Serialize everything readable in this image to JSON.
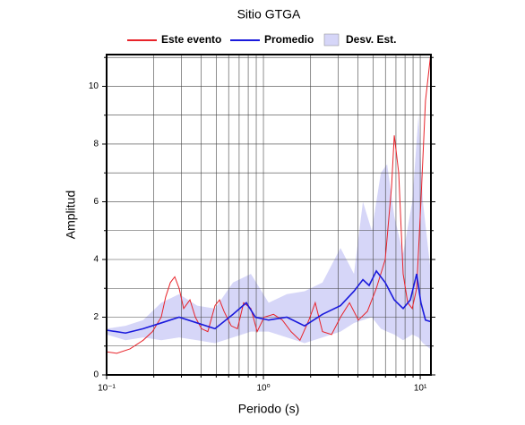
{
  "chart_data": {
    "type": "line",
    "title": "Sitio GTGA",
    "xlabel": "Periodo (s)",
    "ylabel": "Amplitud",
    "xscale": "log",
    "xlim": [
      0.1,
      11.7
    ],
    "ylim": [
      0,
      11.1
    ],
    "xticks": [
      {
        "value": 0.1,
        "label": "10⁻¹"
      },
      {
        "value": 1,
        "label": "10⁰"
      },
      {
        "value": 10,
        "label": "10¹"
      }
    ],
    "minor_xticks": [
      0.2,
      0.3,
      0.4,
      0.5,
      0.6,
      0.7,
      0.8,
      0.9,
      2,
      3,
      4,
      5,
      6,
      7,
      8,
      9
    ],
    "yticks": [
      0,
      2,
      4,
      6,
      8,
      10
    ],
    "minor_yticks": [
      1,
      3,
      5,
      7,
      9,
      11
    ],
    "grid": true,
    "legend": "top",
    "series": [
      {
        "name": "Este evento",
        "color": "#e8232a",
        "x": [
          0.1,
          0.116,
          0.141,
          0.171,
          0.196,
          0.223,
          0.238,
          0.255,
          0.272,
          0.29,
          0.31,
          0.34,
          0.368,
          0.403,
          0.442,
          0.491,
          0.525,
          0.561,
          0.623,
          0.683,
          0.748,
          0.832,
          0.912,
          1.01,
          1.16,
          1.32,
          1.5,
          1.71,
          1.95,
          2.14,
          2.38,
          2.72,
          3.1,
          3.54,
          4.03,
          4.6,
          5.25,
          5.98,
          6.56,
          6.83,
          7.29,
          7.78,
          8.32,
          8.89,
          9.49,
          10.1,
          10.8,
          11.6
        ],
        "values": [
          0.8,
          0.75,
          0.9,
          1.2,
          1.5,
          2.0,
          2.7,
          3.2,
          3.4,
          3.0,
          2.3,
          2.6,
          2.0,
          1.6,
          1.5,
          2.4,
          2.6,
          2.2,
          1.7,
          1.6,
          2.5,
          2.3,
          1.5,
          2.0,
          2.1,
          1.9,
          1.5,
          1.2,
          1.9,
          2.5,
          1.5,
          1.4,
          2.0,
          2.5,
          1.9,
          2.2,
          3.0,
          4.0,
          6.5,
          8.3,
          7.0,
          3.5,
          2.5,
          2.3,
          3.0,
          6.0,
          9.5,
          11.0
        ]
      },
      {
        "name": "Promedio",
        "color": "#1a1adc",
        "x": [
          0.1,
          0.132,
          0.171,
          0.223,
          0.29,
          0.378,
          0.491,
          0.64,
          0.778,
          0.889,
          1.08,
          1.41,
          1.83,
          2.38,
          3.1,
          3.78,
          4.31,
          4.72,
          5.25,
          5.98,
          6.83,
          7.78,
          8.65,
          9.49,
          10.1,
          10.8,
          11.6
        ],
        "values": [
          1.55,
          1.45,
          1.6,
          1.8,
          2.0,
          1.8,
          1.6,
          2.1,
          2.5,
          2.0,
          1.9,
          2.0,
          1.7,
          2.1,
          2.4,
          2.9,
          3.3,
          3.1,
          3.6,
          3.2,
          2.6,
          2.3,
          2.6,
          3.5,
          2.5,
          1.9,
          1.85
        ]
      },
      {
        "name": "Desv. Est.",
        "color": "#d6d6f8",
        "type": "band",
        "x": [
          0.1,
          0.132,
          0.171,
          0.223,
          0.29,
          0.378,
          0.491,
          0.64,
          0.832,
          1.08,
          1.41,
          1.83,
          2.38,
          3.1,
          3.78,
          4.31,
          4.91,
          5.61,
          6.15,
          6.83,
          7.78,
          8.89,
          9.75,
          10.4,
          11.6
        ],
        "lower": [
          1.4,
          1.2,
          1.3,
          1.2,
          1.3,
          1.2,
          1.1,
          1.3,
          1.5,
          1.5,
          1.3,
          1.1,
          1.3,
          1.5,
          1.8,
          1.9,
          2.0,
          1.6,
          1.5,
          1.4,
          1.2,
          1.4,
          1.3,
          1.1,
          0.9
        ],
        "upper": [
          1.6,
          1.7,
          1.9,
          2.5,
          2.8,
          2.4,
          2.3,
          3.2,
          3.5,
          2.5,
          2.8,
          2.9,
          3.2,
          4.4,
          3.5,
          6.0,
          5.0,
          7.0,
          7.3,
          5.5,
          4.2,
          6.0,
          9.0,
          6.0,
          3.7
        ]
      }
    ]
  }
}
